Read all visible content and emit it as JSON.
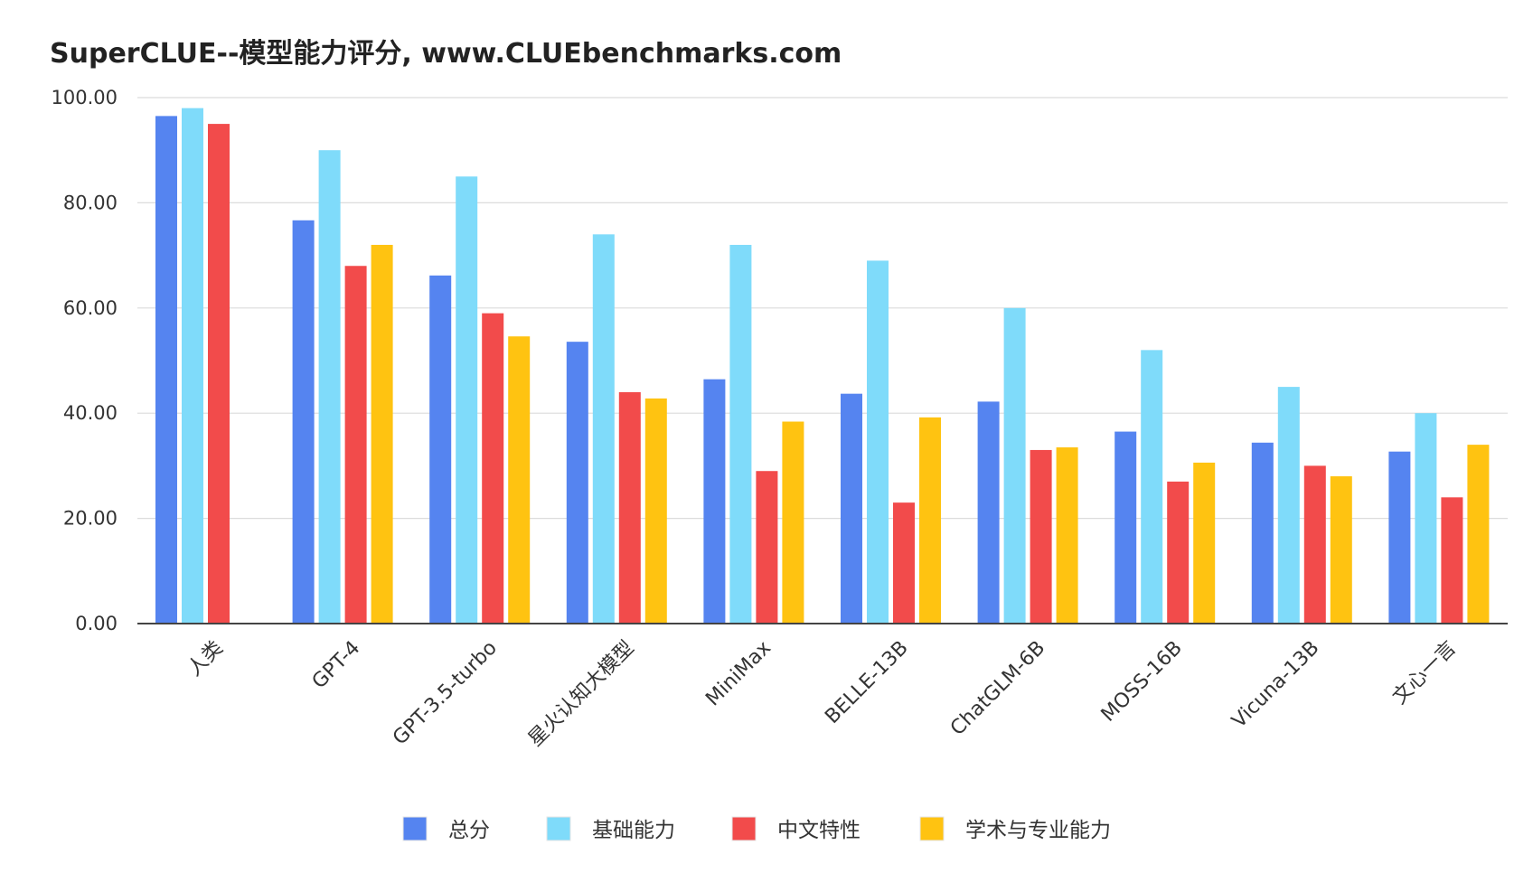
{
  "chart_data": {
    "type": "bar",
    "title": "SuperCLUE--模型能力评分, www.CLUEbenchmarks.com",
    "categories": [
      "人类",
      "GPT-4",
      "GPT-3.5-turbo",
      "星火认知大模型",
      "MiniMax",
      "BELLE-13B",
      "ChatGLM-6B",
      "MOSS-16B",
      "Vicuna-13B",
      "文心一言"
    ],
    "series": [
      {
        "name": "总分",
        "color": "#5584F0",
        "values": [
          96.5,
          76.67,
          66.18,
          53.58,
          46.45,
          43.7,
          42.2,
          36.5,
          34.4,
          32.7
        ]
      },
      {
        "name": "基础能力",
        "color": "#7FDBFA",
        "values": [
          98.0,
          90.0,
          85.0,
          74.0,
          72.0,
          69.0,
          60.0,
          52.0,
          45.0,
          40.0
        ]
      },
      {
        "name": "中文特性",
        "color": "#F24B4B",
        "values": [
          95.0,
          68.0,
          59.0,
          44.0,
          29.0,
          23.0,
          33.0,
          27.0,
          30.0,
          24.0
        ]
      },
      {
        "name": "学术与专业能力",
        "color": "#FFC311",
        "values": [
          null,
          72.0,
          54.6,
          42.8,
          38.4,
          39.2,
          33.5,
          30.6,
          28.0,
          34.0
        ]
      }
    ],
    "yticks": [
      "0.00",
      "20.00",
      "40.00",
      "60.00",
      "80.00",
      "100.00"
    ],
    "ylim": [
      0,
      100
    ],
    "xlabel": "",
    "ylabel": "",
    "grid": true,
    "legend_position": "bottom"
  }
}
